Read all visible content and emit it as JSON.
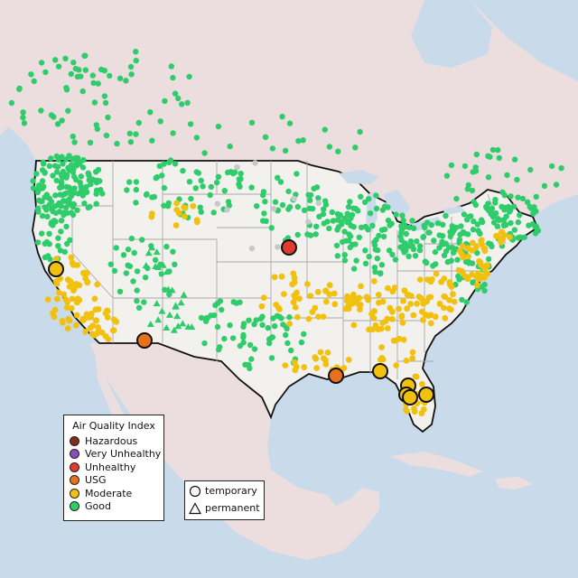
{
  "legend": {
    "title": "Air Quality Index",
    "items": [
      {
        "label": "Hazardous",
        "color": "#7e2d1e"
      },
      {
        "label": "Very Unhealthy",
        "color": "#8a4fb5"
      },
      {
        "label": "Unhealthy",
        "color": "#e03c2c"
      },
      {
        "label": "USG",
        "color": "#e8721c"
      },
      {
        "label": "Moderate",
        "color": "#f2c10f"
      },
      {
        "label": "Good",
        "color": "#2fcc6b"
      }
    ]
  },
  "type_legend": {
    "items": [
      {
        "label": "temporary",
        "icon": "circle-outline-icon"
      },
      {
        "label": "permanent",
        "icon": "triangle-outline-icon"
      }
    ]
  },
  "colors": {
    "water": "#c9daea",
    "land_us": "#f3f1ee",
    "land_other": "#ecdede",
    "border": "#111111",
    "state_line": "#a9a9a9",
    "no_data": "#c8c8c8"
  },
  "monitors_summary": {
    "large_markers": [
      {
        "category": "Moderate",
        "region": "Northern California"
      },
      {
        "category": "USG",
        "region": "Southern Arizona"
      },
      {
        "category": "Unhealthy",
        "region": "Nebraska / Iowa"
      },
      {
        "category": "USG",
        "region": "Louisiana coast"
      },
      {
        "category": "Moderate",
        "region": "Florida panhandle"
      },
      {
        "category": "Moderate",
        "region": "Central Florida"
      }
    ]
  }
}
